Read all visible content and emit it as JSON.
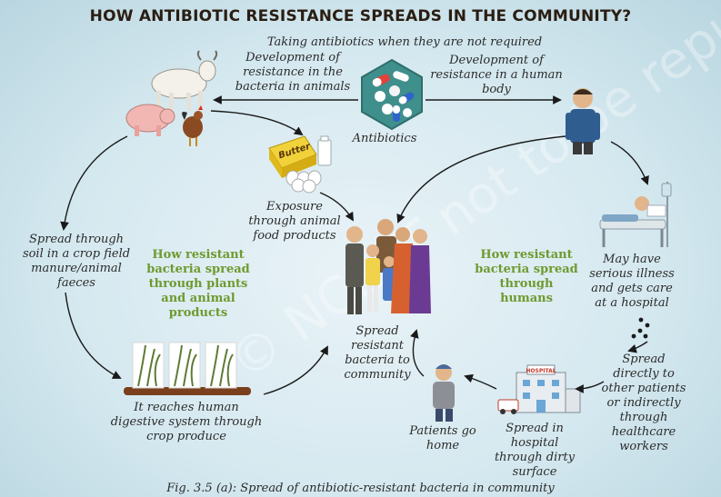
{
  "title": "HOW ANTIBIOTIC RESISTANCE SPREADS IN THE COMMUNITY?",
  "labels": {
    "taking_antibiotics": "Taking antibiotics when they are not required",
    "dev_animals": "Development of resistance in the bacteria in animals",
    "dev_human": "Development of resistance in a human body",
    "antibiotics": "Antibiotics",
    "butter": "Butter",
    "exposure": "Exposure through animal food products",
    "spread_soil": "Spread through soil in a crop field manure/animal faeces",
    "plants_heading": "How resistant bacteria spread through plants and animal products",
    "community": "Spread resistant bacteria to community",
    "humans_heading": "How resistant bacteria spread through humans",
    "hospital_illness": "May have serious illness and gets care at a hospital",
    "spread_directly": "Spread directly to other patients or indirectly through healthcare workers",
    "digestive": "It reaches human digestive system through crop produce",
    "patients_home": "Patients go home",
    "hospital_surface": "Spread in hospital through dirty surface",
    "hospital_sign": "HOSPITAL"
  },
  "caption": "Fig. 3.5 (a): Spread of antibiotic-resistant bacteria in community",
  "watermark": "© NCERT not to be republished",
  "colors": {
    "background": "#d6e9f0",
    "title": "#2a1d12",
    "heading_green": "#6e9a2f",
    "hexagon": "#3f8f8c",
    "arrow": "#1a1a1a"
  }
}
